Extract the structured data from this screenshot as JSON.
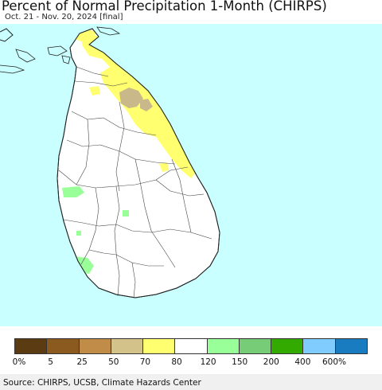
{
  "title": "Percent of Normal Precipitation 1-Month (CHIRPS)",
  "subtitle": "Oct. 21 - Nov. 20, 2024 [final]",
  "legend": {
    "colors": [
      "#5a3b12",
      "#8b5a1e",
      "#c08c48",
      "#d3c28a",
      "#ffff70",
      "#ffffff",
      "#99ff99",
      "#77cc77",
      "#33aa00",
      "#80ccff",
      "#1a7cc0"
    ],
    "labels": [
      "0%",
      "5",
      "25",
      "50",
      "70",
      "80",
      "120",
      "150",
      "200",
      "400",
      "600%"
    ]
  },
  "source": "Source: CHIRPS, UCSB, Climate Hazards Center",
  "map_colors": {
    "sea": "#c9ffff",
    "land": "#ffffff",
    "dry": "#ffff70",
    "very_dry": "#c8b88a",
    "wet": "#99ff99",
    "border": "#222222"
  }
}
